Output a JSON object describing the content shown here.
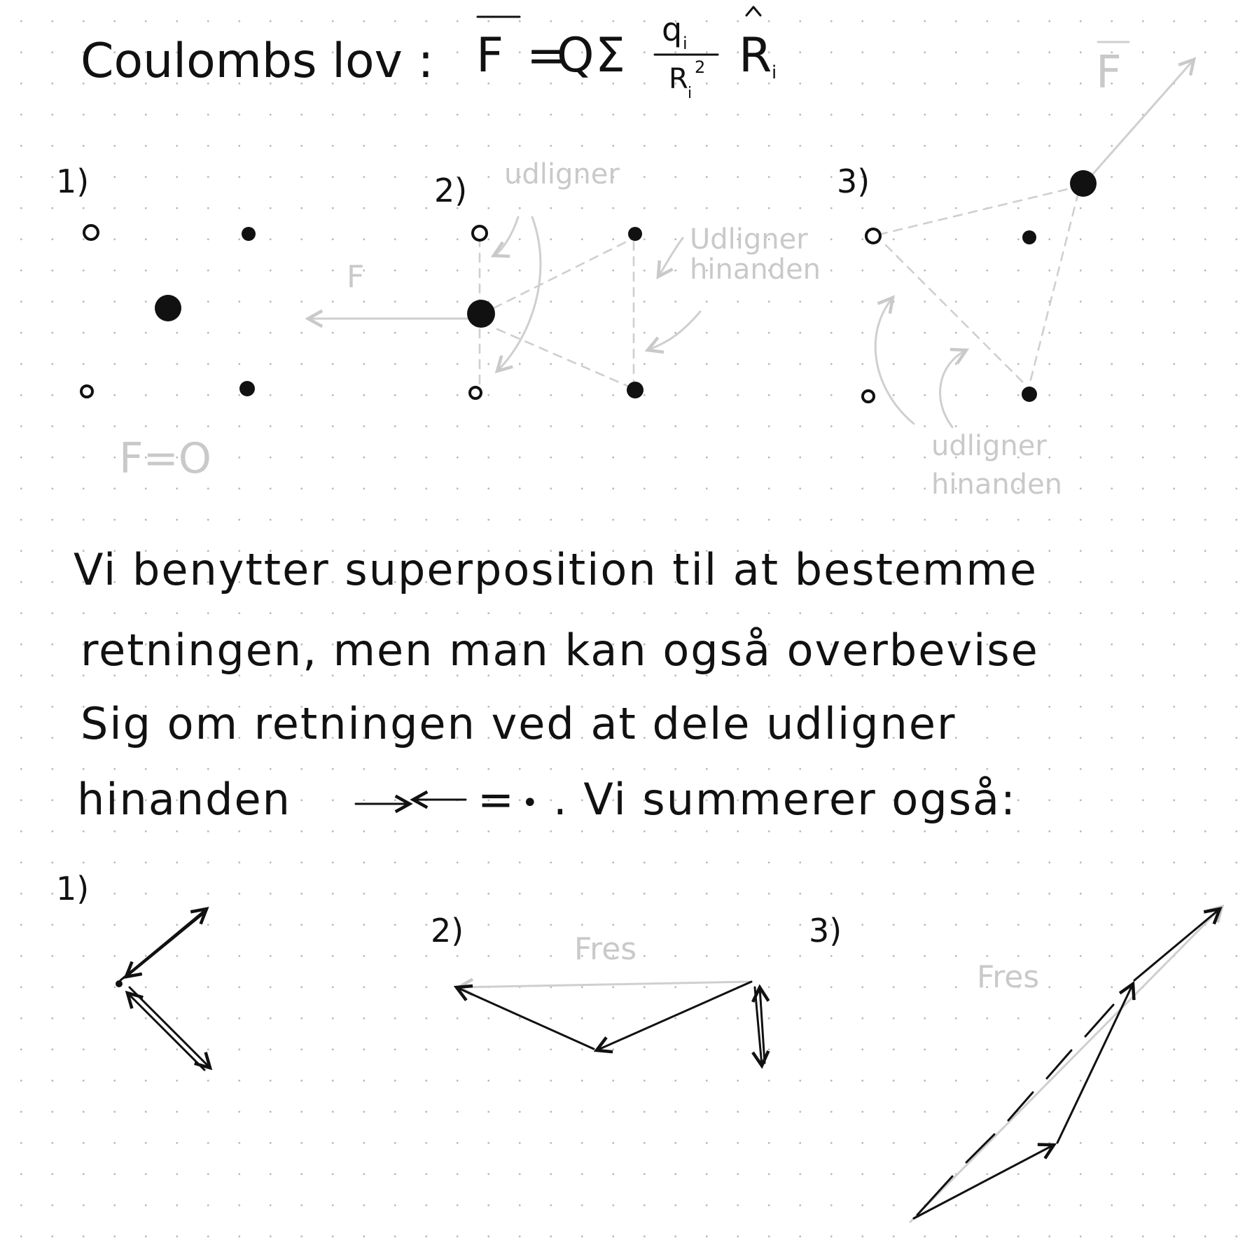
{
  "heading": {
    "label": "Coulombs lov :",
    "formula": {
      "lhs": "F",
      "eq": "=",
      "q_factor": "Q",
      "sum": "Σ",
      "numerator": "q",
      "numerator_sub": "i",
      "denominator": "R",
      "denominator_sup": "2",
      "denominator_sub": "i",
      "unit_vector": "R",
      "unit_vector_sub": "i"
    }
  },
  "diagrams_top": [
    {
      "number": "1)",
      "force_label": "F",
      "result": "F=O"
    },
    {
      "number": "2)",
      "note_top": "udligner",
      "note_side_1": "Udligner",
      "note_side_2": "hinanden"
    },
    {
      "number": "3)",
      "force_label": "F",
      "note_1": "udligner",
      "note_2": "hinanden"
    }
  ],
  "paragraph": [
    "Vi benytter superposition til at bestemme",
    "retningen, men man kan også overbevise",
    "Sig om retningen ved at dele udligner",
    "hinanden"
  ],
  "paragraph_tail": {
    "equals": "=",
    "dot": "•",
    "text": ". Vi summerer også:"
  },
  "diagrams_bottom": [
    {
      "number": "1)"
    },
    {
      "number": "2)",
      "resultant_label": "Fres"
    },
    {
      "number": "3)",
      "resultant_label": "Fres"
    }
  ]
}
